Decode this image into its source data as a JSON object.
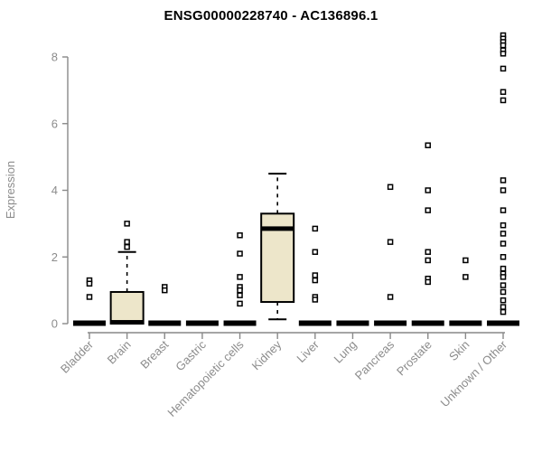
{
  "chart_data": {
    "type": "boxplot",
    "title": "ENSG00000228740 - AC136896.1",
    "ylabel": "Expression",
    "xlabel": "",
    "ylim": [
      0,
      8.7
    ],
    "yticks": [
      0,
      2,
      4,
      6,
      8
    ],
    "grid": false,
    "legend": null,
    "categories": [
      "Bladder",
      "Brain",
      "Breast",
      "Gastric",
      "Hematopoietic cells",
      "Kidney",
      "Liver",
      "Lung",
      "Pancreas",
      "Prostate",
      "Skin",
      "Unknown / Other"
    ],
    "boxes": [
      {
        "category": "Bladder",
        "zero_bar": true,
        "box": null,
        "outliers": [
          1.3,
          1.2,
          0.8
        ]
      },
      {
        "category": "Brain",
        "zero_bar": false,
        "box": {
          "q1": 0,
          "median": 0.04,
          "q3": 0.95,
          "whisker_low": null,
          "whisker_high": 2.15
        },
        "outliers": [
          3.0,
          2.45,
          2.3
        ]
      },
      {
        "category": "Breast",
        "zero_bar": true,
        "box": null,
        "outliers": [
          1.1,
          1.0
        ]
      },
      {
        "category": "Gastric",
        "zero_bar": true,
        "box": null,
        "outliers": []
      },
      {
        "category": "Hematopoietic cells",
        "zero_bar": true,
        "box": null,
        "outliers": [
          2.65,
          2.1,
          1.4,
          1.1,
          1.0,
          0.85,
          0.6
        ]
      },
      {
        "category": "Kidney",
        "zero_bar": false,
        "box": {
          "q1": 0.65,
          "median": 2.85,
          "q3": 3.3,
          "whisker_low": 0.13,
          "whisker_high": 4.5
        },
        "outliers": []
      },
      {
        "category": "Liver",
        "zero_bar": true,
        "box": null,
        "outliers": [
          2.85,
          2.15,
          1.45,
          1.3,
          0.8,
          0.72
        ]
      },
      {
        "category": "Lung",
        "zero_bar": true,
        "box": null,
        "outliers": []
      },
      {
        "category": "Pancreas",
        "zero_bar": true,
        "box": null,
        "outliers": [
          4.1,
          2.45,
          0.8
        ]
      },
      {
        "category": "Prostate",
        "zero_bar": true,
        "box": null,
        "outliers": [
          5.35,
          4.0,
          3.4,
          2.15,
          1.9,
          1.35,
          1.25
        ]
      },
      {
        "category": "Skin",
        "zero_bar": true,
        "box": null,
        "outliers": [
          1.9,
          1.4
        ]
      },
      {
        "category": "Unknown / Other",
        "zero_bar": true,
        "box": null,
        "outliers": [
          8.65,
          8.55,
          8.45,
          8.35,
          8.2,
          8.1,
          7.65,
          6.95,
          6.7,
          4.3,
          4.0,
          3.4,
          2.95,
          2.7,
          2.4,
          2.0,
          1.65,
          1.5,
          1.4,
          1.15,
          0.95,
          0.7,
          0.5,
          0.35
        ]
      }
    ],
    "colors": {
      "box_fill": "#EDE6CA",
      "box_border": "#000000",
      "zero_bar": "#000000",
      "axis": "#898989",
      "tick_label": "#8c8c8c",
      "title": "#000000",
      "outlier_stroke": "#000000",
      "outlier_fill": "#ffffff"
    }
  }
}
